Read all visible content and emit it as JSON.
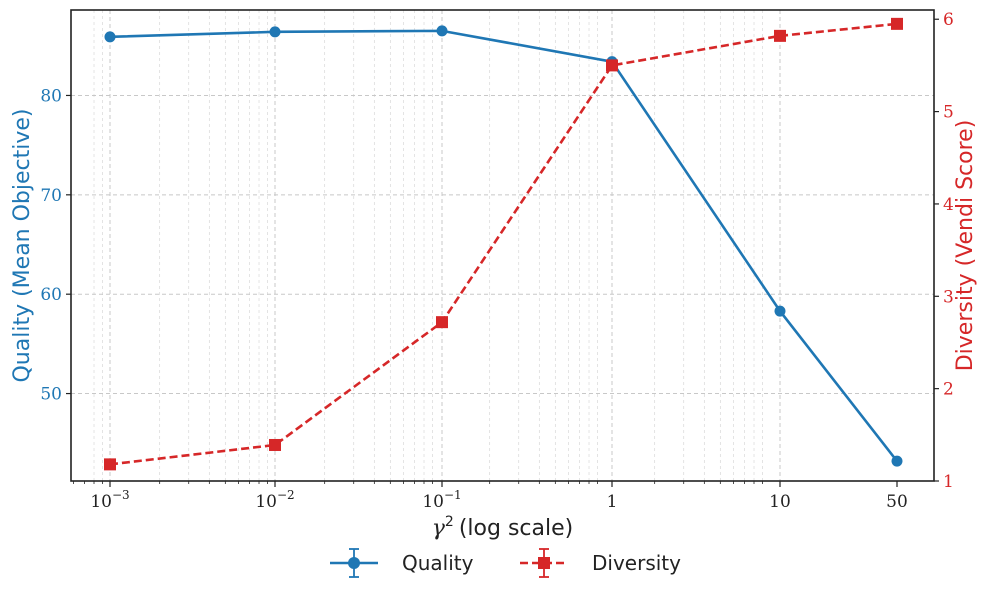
{
  "chart_data": {
    "type": "line",
    "x": [
      0.001,
      0.01,
      0.1,
      1,
      10,
      50
    ],
    "x_tick_labels": [
      {
        "base": "10",
        "exp": "−3"
      },
      {
        "base": "10",
        "exp": "−2"
      },
      {
        "base": "10",
        "exp": "−1"
      },
      {
        "base": "1",
        "exp": ""
      },
      {
        "base": "10",
        "exp": ""
      },
      {
        "base": "50",
        "exp": ""
      }
    ],
    "xlabel": "(log scale)",
    "xlabel_symbol": "γ",
    "xlabel_exp": "2",
    "xscale": "log",
    "grid": true,
    "legend_position": "bottom-center",
    "series": [
      {
        "name": "Quality",
        "axis": "left",
        "values": [
          85.9,
          86.4,
          86.5,
          83.4,
          58.3,
          43.2
        ],
        "color": "#1f77b4",
        "line_style": "solid",
        "marker": "circle"
      },
      {
        "name": "Diversity",
        "axis": "right",
        "values": [
          1.18,
          1.39,
          2.72,
          5.5,
          5.82,
          5.95
        ],
        "color": "#d62728",
        "line_style": "dashed",
        "marker": "square"
      }
    ],
    "y_left": {
      "label": "Quality (Mean Objective)",
      "ticks": [
        50,
        60,
        70,
        80
      ],
      "ylim": [
        41.2,
        88.6
      ]
    },
    "y_right": {
      "label": "Diversity (Vendi Score)",
      "ticks": [
        1,
        2,
        3,
        4,
        5,
        6
      ],
      "ylim": [
        1.0,
        6.1
      ]
    }
  }
}
